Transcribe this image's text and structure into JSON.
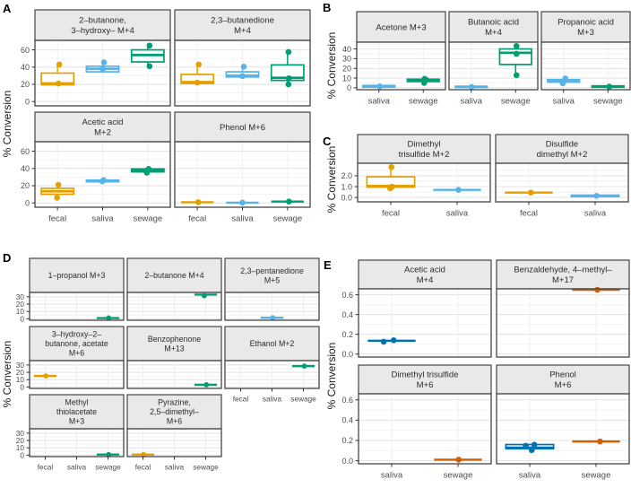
{
  "theme": {
    "strip_bg": "#E9E9E9",
    "panel_border": "#454545",
    "grid_major": "#E2E2E2",
    "grid_minor": "#F2F2F2",
    "grid_vertical": "#EFEFEF",
    "tick_text": "#4D4D4D",
    "strip_text": "#2B2B2B",
    "background": "#FFFFFF"
  },
  "palette": {
    "fecal": "#E69F00",
    "saliva": "#56B4E9",
    "sewage": "#009E73",
    "saliva_dark": "#0072B2",
    "sewage_vermillion": "#D55E00"
  },
  "chart_data": [
    {
      "label": "A",
      "type": "boxplot",
      "ylabel": "% Conversion",
      "xlabel": "",
      "ncol": 2,
      "categories": [
        "fecal",
        "saliva",
        "sewage"
      ],
      "colors": {
        "fecal": "#E69F00",
        "saliva": "#56B4E9",
        "sewage": "#009E73"
      },
      "ylim": [
        -5,
        71
      ],
      "yticks": [
        {
          "v": 0,
          "label": "0"
        },
        {
          "v": 20,
          "label": "20"
        },
        {
          "v": 40,
          "label": "40"
        },
        {
          "v": 60,
          "label": "60"
        }
      ],
      "facets": [
        {
          "title": [
            "2–butanone,",
            "3–hydroxy– M+4"
          ],
          "data": [
            {
              "cat": "fecal",
              "q1": 19.5,
              "q3": 33,
              "med": 21,
              "whi": 43,
              "pts": [
                [
                  43,
                  0.04
                ],
                [
                  21,
                  0.02
                ]
              ]
            },
            {
              "cat": "saliva",
              "q1": 34.5,
              "q3": 41,
              "med": 38,
              "whi": 45.5,
              "pts": [
                [
                  45.5,
                  0.03
                ],
                [
                  37.5,
                  0
                ]
              ]
            },
            {
              "cat": "sewage",
              "q1": 46,
              "q3": 60,
              "med": 54,
              "whi": 65,
              "wlo": 41,
              "pts": [
                [
                  65,
                  0.04
                ],
                [
                  41,
                  0.04
                ]
              ]
            }
          ]
        },
        {
          "title": [
            "2,3–butanedione",
            "M+4"
          ],
          "data": [
            {
              "cat": "fecal",
              "q1": 21,
              "q3": 31.5,
              "med": 22.5,
              "whi": 43,
              "pts": [
                [
                  43,
                  0.03
                ],
                [
                  22,
                  0
                ]
              ]
            },
            {
              "cat": "saliva",
              "q1": 28.5,
              "q3": 34.5,
              "med": 30,
              "whi": 40.5,
              "pts": [
                [
                  40.5,
                  0.03
                ],
                [
                  29.5,
                  0
                ]
              ]
            },
            {
              "cat": "sewage",
              "q1": 24.5,
              "q3": 42.5,
              "med": 27.5,
              "whi": 57.5,
              "wlo": 20,
              "pts": [
                [
                  57.5,
                  0.02
                ],
                [
                  27,
                  0.03
                ],
                [
                  20,
                  0.02
                ]
              ]
            }
          ]
        },
        {
          "title": [
            "Acetic acid",
            "M+2"
          ],
          "data": [
            {
              "cat": "fecal",
              "q1": 10,
              "q3": 17,
              "med": 13.5,
              "whi": 21,
              "wlo": 6,
              "pts": [
                [
                  21,
                  0.02
                ],
                [
                  6,
                  -0.01
                ]
              ]
            },
            {
              "cat": "saliva",
              "q1": 24.5,
              "q3": 26.5,
              "med": 25.5,
              "pts": [
                [
                  26.5,
                  0.02
                ],
                [
                  25,
                  -0.01
                ]
              ]
            },
            {
              "cat": "sewage",
              "q1": 36,
              "q3": 39.5,
              "med": 38,
              "pts": [
                [
                  39.5,
                  0.02
                ],
                [
                  35,
                  -0.02
                ]
              ]
            }
          ]
        },
        {
          "title": [
            "Phenol M+6"
          ],
          "data": [
            {
              "cat": "fecal",
              "med": 0.8,
              "pts": [
                [
                  0.8,
                  0.02
                ]
              ]
            },
            {
              "cat": "saliva",
              "med": 0.3,
              "pts": [
                [
                  0.3,
                  0
                ]
              ]
            },
            {
              "cat": "sewage",
              "med": 1.6,
              "pts": [
                [
                  1.6,
                  0.03
                ]
              ]
            }
          ]
        }
      ]
    },
    {
      "label": "B",
      "type": "boxplot",
      "ylabel": "% Conversion",
      "xlabel": "",
      "ncol": 3,
      "categories": [
        "saliva",
        "sewage"
      ],
      "colors": {
        "saliva": "#56B4E9",
        "sewage": "#009E73"
      },
      "ylim": [
        -2,
        47
      ],
      "yticks": [
        {
          "v": 0,
          "label": "0"
        },
        {
          "v": 10,
          "label": "10"
        },
        {
          "v": 20,
          "label": "20"
        },
        {
          "v": 30,
          "label": "30"
        },
        {
          "v": 40,
          "label": "40"
        }
      ],
      "facets": [
        {
          "title": [
            "Acetone M+3"
          ],
          "data": [
            {
              "cat": "saliva",
              "q1": 0.6,
              "q3": 2.4,
              "med": 1.4,
              "pts": [
                [
                  1.4,
                  0.02
                ]
              ]
            },
            {
              "cat": "sewage",
              "q1": 6.4,
              "q3": 8.8,
              "med": 8,
              "whi": 9.3,
              "wlo": 5,
              "pts": [
                [
                  9.3,
                  0.03
                ],
                [
                  8.3,
                  0.06
                ],
                [
                  5,
                  0.02
                ]
              ]
            }
          ]
        },
        {
          "title": [
            "Butanoic acid",
            "M+4"
          ],
          "data": [
            {
              "cat": "saliva",
              "q1": 0.4,
              "q3": 1.6,
              "med": 0.9,
              "pts": [
                [
                  0.9,
                  0.01
                ]
              ]
            },
            {
              "cat": "sewage",
              "q1": 24,
              "q3": 40,
              "med": 36,
              "whi": 43,
              "wlo": 13,
              "pts": [
                [
                  43,
                  0.02
                ],
                [
                  35,
                  0.02
                ],
                [
                  13,
                  0.02
                ]
              ]
            }
          ]
        },
        {
          "title": [
            "Propanoic acid",
            "M+3"
          ],
          "data": [
            {
              "cat": "saliva",
              "q1": 5.8,
              "q3": 8.4,
              "med": 7.6,
              "whi": 9.6,
              "wlo": 4.5,
              "pts": [
                [
                  9.6,
                  0.04
                ],
                [
                  7.7,
                  0.04
                ],
                [
                  4.6,
                  -0.02
                ]
              ]
            },
            {
              "cat": "sewage",
              "q1": 0.5,
              "q3": 2,
              "med": 1.2,
              "pts": [
                [
                  1.2,
                  0.03
                ]
              ]
            }
          ]
        }
      ]
    },
    {
      "label": "C",
      "type": "boxplot",
      "ylabel": "% Conversion",
      "xlabel": "",
      "ncol": 2,
      "categories": [
        "fecal",
        "saliva"
      ],
      "colors": {
        "fecal": "#E69F00",
        "saliva": "#56B4E9"
      },
      "ylim": [
        -0.4,
        3.15
      ],
      "yticks": [
        {
          "v": 0,
          "label": "0.0"
        },
        {
          "v": 1,
          "label": "1.0"
        },
        {
          "v": 2,
          "label": "2.0"
        }
      ],
      "facets": [
        {
          "title": [
            "Dimethyl",
            "trisulfide M+2"
          ],
          "data": [
            {
              "cat": "fecal",
              "q1": 0.95,
              "q3": 1.9,
              "med": 1.05,
              "whi": 2.8,
              "pts": [
                [
                  2.8,
                  0.01
                ],
                [
                  1,
                  0.02
                ],
                [
                  0.85,
                  -0.01
                ]
              ]
            },
            {
              "cat": "saliva",
              "med": 0.7,
              "pts": [
                [
                  0.7,
                  0.02
                ]
              ]
            }
          ]
        },
        {
          "title": [
            "Disulfide",
            "dimethyl M+2"
          ],
          "data": [
            {
              "cat": "fecal",
              "med": 0.45,
              "pts": [
                [
                  0.45,
                  0.03
                ]
              ]
            },
            {
              "cat": "saliva",
              "q1": 0.08,
              "q3": 0.22,
              "med": 0.15,
              "pts": [
                [
                  0.15,
                  0.02
                ]
              ]
            }
          ]
        }
      ]
    },
    {
      "label": "D",
      "type": "boxplot",
      "ylabel": "% Conversion",
      "xlabel": "",
      "ncol": 3,
      "categories": [
        "fecal",
        "saliva",
        "sewage"
      ],
      "colors": {
        "fecal": "#E69F00",
        "saliva": "#56B4E9",
        "sewage": "#009E73"
      },
      "ylim": [
        -2,
        36
      ],
      "yticks": [
        {
          "v": 0,
          "label": "0"
        },
        {
          "v": 10,
          "label": "10"
        },
        {
          "v": 20,
          "label": "20"
        },
        {
          "v": 30,
          "label": "30"
        }
      ],
      "facets": [
        {
          "title": [
            "1–propanol M+3"
          ],
          "data": [
            {
              "cat": "sewage",
              "med": 1,
              "pts": [
                [
                  1,
                  0.02
                ]
              ]
            }
          ]
        },
        {
          "title": [
            "2–butanone M+4"
          ],
          "data": [
            {
              "cat": "sewage",
              "med": 33,
              "pts": [
                [
                  31.5,
                  -0.05
                ]
              ]
            }
          ]
        },
        {
          "title": [
            "2,3–pentanedione",
            "M+5"
          ],
          "data": [
            {
              "cat": "saliva",
              "med": 1.5,
              "pts": [
                [
                  1.5,
                  0.02
                ]
              ]
            }
          ]
        },
        {
          "title": [
            "3–hydroxy–2–",
            "butanone, acetate",
            "M+6"
          ],
          "data": [
            {
              "cat": "fecal",
              "med": 15,
              "pts": [
                [
                  15,
                  0.02
                ]
              ]
            }
          ]
        },
        {
          "title": [
            "Benzophenone",
            "M+13"
          ],
          "data": [
            {
              "cat": "sewage",
              "med": 3,
              "pts": [
                [
                  3,
                  0.02
                ]
              ]
            }
          ]
        },
        {
          "title": [
            "Ethanol M+2"
          ],
          "data": [
            {
              "cat": "sewage",
              "med": 28.5,
              "pts": [
                [
                  28.5,
                  0.03
                ]
              ]
            }
          ]
        },
        {
          "title": [
            "Methyl",
            "thiolacetate",
            "M+3"
          ],
          "data": [
            {
              "cat": "sewage",
              "med": 0.8,
              "pts": [
                [
                  0.8,
                  0.02
                ]
              ]
            }
          ]
        },
        {
          "title": [
            "Pyrazine,",
            "2,5–dimethyl–",
            "M+6"
          ],
          "data": [
            {
              "cat": "fecal",
              "med": 0.8,
              "pts": [
                [
                  0.8,
                  0.02
                ]
              ]
            }
          ]
        }
      ]
    },
    {
      "label": "E",
      "type": "boxplot",
      "ylabel": "% Conversion",
      "xlabel": "",
      "ncol": 2,
      "categories": [
        "saliva",
        "sewage"
      ],
      "colors": {
        "saliva": "#0072B2",
        "sewage": "#D55E00"
      },
      "ylim": [
        -0.03,
        0.66
      ],
      "yticks": [
        {
          "v": 0,
          "label": "0.0"
        },
        {
          "v": 0.2,
          "label": "0.2"
        },
        {
          "v": 0.4,
          "label": "0.4"
        },
        {
          "v": 0.6,
          "label": "0.6"
        }
      ],
      "facets": [
        {
          "title": [
            "Acetic acid",
            "M+4"
          ],
          "data": [
            {
              "cat": "saliva",
              "med": 0.135,
              "pts": [
                [
                  0.125,
                  -0.12
                ],
                [
                  0.14,
                  0.03
                ]
              ]
            }
          ]
        },
        {
          "title": [
            "Benzaldehyde, 4–methyl–",
            "M+17"
          ],
          "data": [
            {
              "cat": "sewage",
              "med": 0.65,
              "pts": [
                [
                  0.65,
                  0.02
                ]
              ]
            }
          ]
        },
        {
          "title": [
            "Dimethyl trisulfide",
            "M+6"
          ],
          "data": [
            {
              "cat": "sewage",
              "med": 0.01,
              "pts": [
                [
                  0.01,
                  0.01
                ]
              ]
            }
          ]
        },
        {
          "title": [
            "Phenol",
            "M+6"
          ],
          "data": [
            {
              "cat": "saliva",
              "q1": 0.118,
              "q3": 0.16,
              "med": 0.128,
              "pts": [
                [
                  0.148,
                  -0.06
                ],
                [
                  0.158,
                  0.07
                ],
                [
                  0.105,
                  0.03
                ]
              ]
            },
            {
              "cat": "sewage",
              "med": 0.19,
              "pts": [
                [
                  0.19,
                  0.06
                ]
              ]
            }
          ]
        }
      ]
    }
  ]
}
